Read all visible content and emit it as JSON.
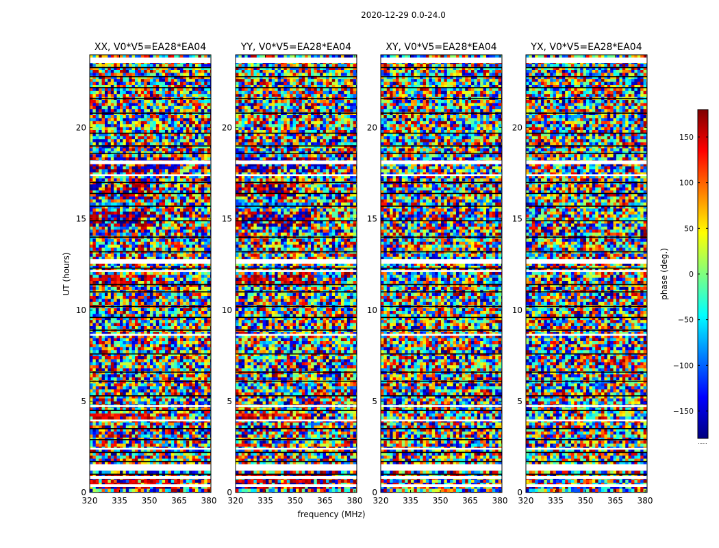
{
  "chart_data": {
    "type": "heatmap",
    "title": "2020-12-29 0.0-24.0",
    "xlabel": "frequency (MHz)",
    "ylabel": "UT (hours)",
    "xlim": [
      320,
      381
    ],
    "ylim": [
      0,
      24
    ],
    "xticks": [
      320,
      335,
      350,
      365,
      380
    ],
    "xtick_labels": [
      "320",
      "335",
      "350",
      "365",
      "380"
    ],
    "yticks": [
      0,
      5,
      10,
      15,
      20
    ],
    "ytick_labels": [
      "0",
      "5",
      "10",
      "15",
      "20"
    ],
    "panels": [
      {
        "id": "xx",
        "title": "XX, V0*V5=EA28*EA04",
        "coherent": 1.0
      },
      {
        "id": "yy",
        "title": "YY, V0*V5=EA28*EA04",
        "coherent": 1.0
      },
      {
        "id": "xy",
        "title": "XY, V0*V5=EA28*EA04",
        "coherent": 0.0
      },
      {
        "id": "yx",
        "title": "YX, V0*V5=EA28*EA04",
        "coherent": 0.0
      }
    ],
    "white_bands_ut": [
      [
        0.3,
        0.45
      ],
      [
        0.75,
        0.9
      ],
      [
        1.2,
        1.55
      ],
      [
        2.35,
        2.45
      ],
      [
        3.9,
        4.0
      ],
      [
        4.7,
        4.8
      ],
      [
        8.6,
        8.7
      ],
      [
        12.1,
        12.2
      ],
      [
        12.55,
        12.8
      ],
      [
        17.35,
        17.45
      ],
      [
        18.0,
        18.2
      ],
      [
        23.55,
        23.85
      ]
    ],
    "dark_lines_ut": [
      1.0,
      1.7,
      2.2,
      2.9,
      3.5,
      4.5,
      5.3,
      6.1,
      6.6,
      7.6,
      8.9,
      9.6,
      10.2,
      11.0,
      11.4,
      12.3,
      13.2,
      14.0,
      14.9,
      15.7,
      16.4,
      17.0,
      18.6,
      19.0,
      19.7,
      20.8,
      21.6,
      22.2,
      22.8,
      23.3
    ],
    "coherent_segments": [
      {
        "ut": [
          0.2,
          1.1
        ],
        "f_max": 365,
        "phase": 160
      },
      {
        "ut": [
          2.45,
          2.6
        ],
        "f_max": 350,
        "phase": 120
      },
      {
        "ut": [
          4.05,
          4.4
        ],
        "f_max": 355,
        "phase": 140
      },
      {
        "ut": [
          11.5,
          12.0
        ],
        "f_max": 360,
        "phase": 150
      },
      {
        "ut": [
          14.6,
          15.4
        ],
        "f_max": 358,
        "phase": 175
      },
      {
        "ut": [
          15.6,
          15.9
        ],
        "f_max": 352,
        "phase": -80
      },
      {
        "ut": [
          16.2,
          17.0
        ],
        "f_max": 350,
        "phase": 170
      },
      {
        "ut": [
          17.5,
          18.4
        ],
        "f_max": 365,
        "phase": -170
      }
    ],
    "colorbar": {
      "label": "phase (deg.)",
      "range": [
        -180,
        180
      ],
      "ticks": [
        150,
        100,
        50,
        0,
        -50,
        -100,
        -150
      ],
      "tick_labels": [
        "150",
        "100",
        "50",
        "0",
        "−50",
        "−100",
        "−150"
      ],
      "bottom_note": "......",
      "colors": [
        "#00007f",
        "#0000ff",
        "#007fff",
        "#00ffff",
        "#7fff7f",
        "#ffff00",
        "#ff7f00",
        "#ff0000",
        "#7f0000"
      ]
    }
  }
}
